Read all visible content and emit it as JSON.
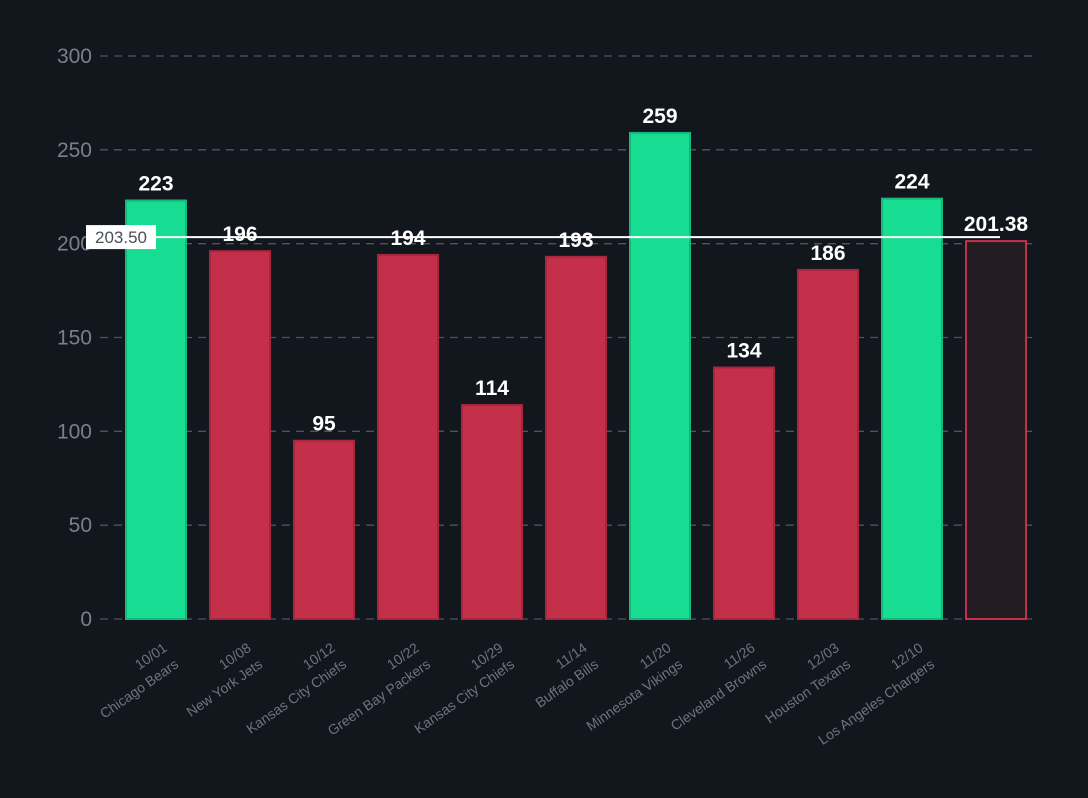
{
  "chart_data": {
    "type": "bar",
    "categories": [
      [
        "10/01",
        "Chicago Bears"
      ],
      [
        "10/08",
        "New York Jets"
      ],
      [
        "10/12",
        "Kansas City Chiefs"
      ],
      [
        "10/22",
        "Green Bay Packers"
      ],
      [
        "10/29",
        "Kansas City Chiefs"
      ],
      [
        "11/14",
        "Buffalo Bills"
      ],
      [
        "11/20",
        "Minnesota Vikings"
      ],
      [
        "11/26",
        "Cleveland Browns"
      ],
      [
        "12/03",
        "Houston Texans"
      ],
      [
        "12/10",
        "Los Angeles Chargers"
      ],
      [
        "",
        ""
      ]
    ],
    "values": [
      223,
      196,
      95,
      194,
      114,
      193,
      259,
      134,
      186,
      224,
      201.38
    ],
    "value_labels": [
      "223",
      "196",
      "95",
      "194",
      "114",
      "193",
      "259",
      "134",
      "186",
      "224",
      "201.38"
    ],
    "bar_status": [
      "above",
      "below",
      "below",
      "below",
      "below",
      "below",
      "above",
      "below",
      "below",
      "above",
      "projection"
    ],
    "ylim": [
      0,
      300
    ],
    "yticks": [
      0,
      50,
      100,
      150,
      200,
      250,
      300
    ],
    "ytick_labels": [
      "0",
      "50",
      "100",
      "150",
      "200",
      "250",
      "300"
    ],
    "reference_line": {
      "value": 203.5,
      "label": "203.50"
    },
    "grid": true,
    "colors": {
      "background": "#12171e",
      "above": "#17dd93",
      "below": "#c42f49",
      "projection_fill": "#231c23",
      "projection_stroke": "#c42f49",
      "grid": "#4d545d",
      "reference_line": "#ffffff"
    }
  }
}
